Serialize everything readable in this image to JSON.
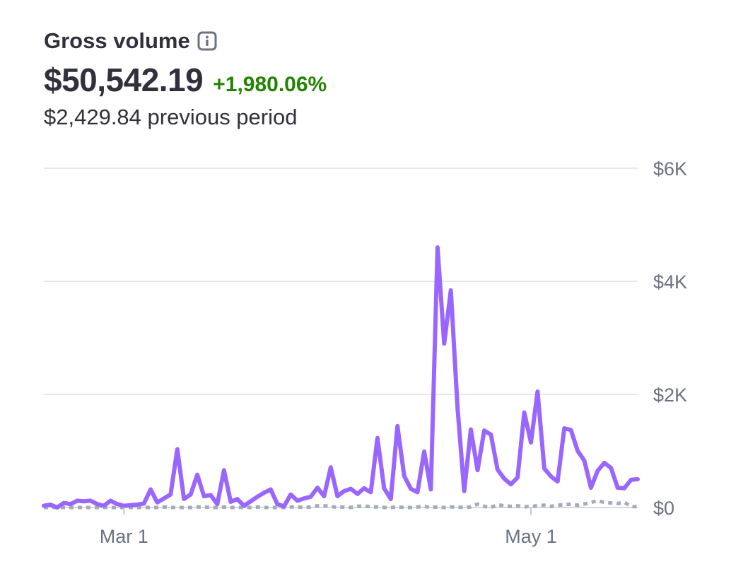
{
  "header": {
    "title": "Gross volume",
    "info_icon": "info-icon",
    "value": "$50,542.19",
    "change": "+1,980.06%",
    "previous": "$2,429.84 previous period"
  },
  "colors": {
    "current": "#9966ff",
    "previous": "#a3acb9",
    "grid": "#e3e8ee",
    "positive": "#228403"
  },
  "chart_data": {
    "type": "line",
    "title": "Gross volume",
    "x_ticks": [
      "Mar 1",
      "May 1"
    ],
    "x_tick_index": [
      12,
      73
    ],
    "y_ticks": [
      "$0",
      "$2K",
      "$4K",
      "$6K"
    ],
    "ylim": [
      0,
      6000
    ],
    "grid": true,
    "series": [
      {
        "style": "solid",
        "values": [
          30,
          50,
          0,
          80,
          60,
          120,
          110,
          120,
          60,
          30,
          120,
          60,
          30,
          40,
          50,
          70,
          320,
          90,
          160,
          230,
          1030,
          150,
          230,
          580,
          200,
          220,
          60,
          660,
          100,
          150,
          30,
          110,
          190,
          260,
          320,
          60,
          20,
          230,
          120,
          160,
          190,
          350,
          200,
          710,
          200,
          290,
          330,
          240,
          340,
          270,
          1230,
          340,
          150,
          1440,
          560,
          330,
          270,
          990,
          320,
          4600,
          2900,
          3840,
          1760,
          290,
          1380,
          660,
          1360,
          1290,
          670,
          510,
          410,
          530,
          1680,
          1150,
          2050,
          690,
          550,
          460,
          1400,
          1370,
          1000,
          830,
          350,
          650,
          790,
          700,
          350,
          340,
          490,
          500
        ]
      },
      {
        "style": "dotted",
        "values": [
          0,
          0,
          0,
          0,
          0,
          0,
          0,
          0,
          0,
          0,
          0,
          0,
          0,
          0,
          0,
          0,
          0,
          0,
          10,
          0,
          0,
          0,
          0,
          10,
          10,
          0,
          0,
          10,
          0,
          0,
          0,
          0,
          10,
          0,
          0,
          0,
          0,
          10,
          10,
          0,
          10,
          30,
          30,
          20,
          0,
          10,
          0,
          20,
          30,
          10,
          10,
          0,
          0,
          10,
          0,
          0,
          10,
          20,
          0,
          10,
          0,
          10,
          10,
          0,
          10,
          60,
          20,
          0,
          50,
          30,
          20,
          30,
          10,
          20,
          30,
          40,
          20,
          40,
          50,
          60,
          40,
          60,
          90,
          120,
          90,
          80,
          70,
          90,
          20,
          10
        ]
      }
    ]
  }
}
